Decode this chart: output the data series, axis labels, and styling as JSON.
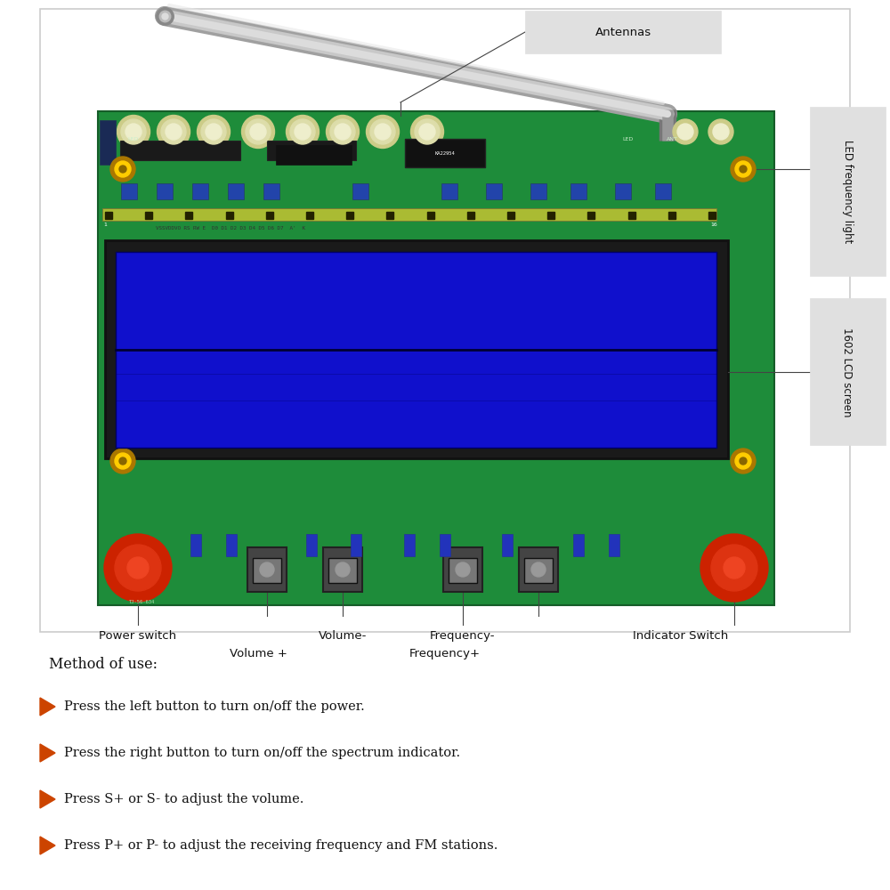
{
  "bg_color": "#ffffff",
  "box_color": "#cccccc",
  "title_text": "Method of use:",
  "instructions": [
    "Press the left button to turn on/off the power.",
    "Press the right button to turn on/off the spectrum indicator.",
    "Press S+ or S- to adjust the volume.",
    "Press P+ or P- to adjust the receiving frequency and FM stations."
  ],
  "bullet_color": "#cc4400",
  "text_color": "#111111",
  "label_antennas": "Antennas",
  "label_led_freq": "LED frequency light",
  "label_lcd": "1602 LCD screen",
  "label_power": "Power switch",
  "label_vol_plus": "Volume +",
  "label_vol_minus": "Volume-",
  "label_freq_plus": "Frequency+",
  "label_freq_minus": "Frequency-",
  "label_indicator": "Indicator Switch",
  "line_color": "#444444",
  "board_green": "#1e8c3a",
  "lcd_blue": "#1010cc",
  "button_orange": "#cc3300",
  "label_bg": "#e0e0e0"
}
